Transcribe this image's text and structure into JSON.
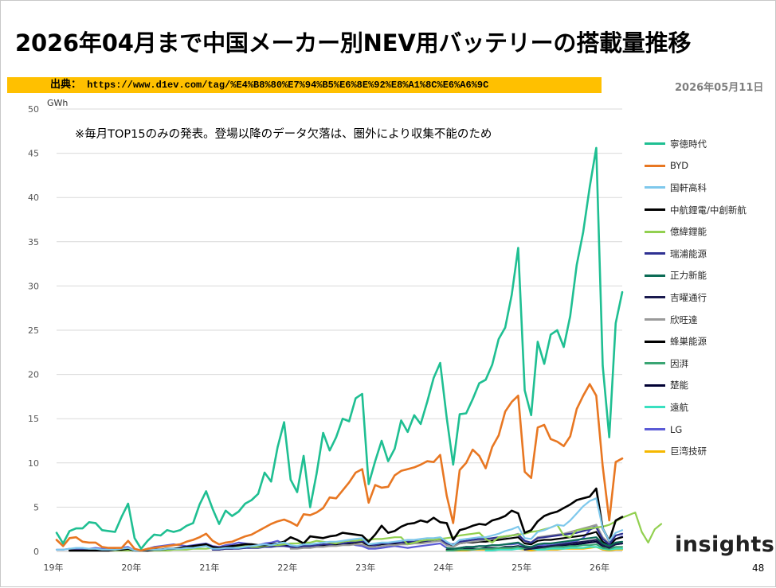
{
  "title": "2026年04月まで中国メーカー別NEV用バッテリーの搭載量推移",
  "source": {
    "label": "出典：",
    "url": "https://www.d1ev.com/tag/%E4%B8%80%E7%94%B5%E6%8E%92%E8%A1%8C%E6%A6%9C"
  },
  "date": "2026年05月11日",
  "note": "※毎月TOP15のみの発表。登場以降のデータ欠落は、圏外により収集不能のため",
  "brand": "insights",
  "page_number": "48",
  "chart_data": {
    "type": "line",
    "ylabel": "GWh",
    "ylim": [
      0,
      50
    ],
    "y_ticks": [
      0,
      5,
      10,
      15,
      20,
      25,
      30,
      35,
      40,
      45,
      50
    ],
    "x_labels": [
      "19年",
      "20年",
      "21年",
      "22年",
      "23年",
      "24年",
      "25年",
      "26年"
    ],
    "x_start": "2019-01",
    "grid": true,
    "legend_position": "right",
    "series": [
      {
        "name": "寧徳時代",
        "color": "#1fbf92",
        "width": 2.6,
        "start": 0,
        "values": [
          2.1,
          0.9,
          2.3,
          2.6,
          2.6,
          3.3,
          3.2,
          2.4,
          2.3,
          2.2,
          3.9,
          5.4,
          1.5,
          0.3,
          1.2,
          1.9,
          1.8,
          2.4,
          2.2,
          2.4,
          2.9,
          3.2,
          5.3,
          6.8,
          4.8,
          3.1,
          4.6,
          4,
          4.5,
          5.4,
          5.8,
          6.5,
          8.9,
          7.9,
          11.8,
          14.6,
          8.1,
          6.7,
          10.8,
          5,
          8.8,
          13.4,
          11.4,
          12.9,
          15,
          14.7,
          17.3,
          17.8,
          7.6,
          10.2,
          12.5,
          10.2,
          11.6,
          14.8,
          13.5,
          15.4,
          14.4,
          16.9,
          19.6,
          21.3,
          15.1,
          9.8,
          15.5,
          15.6,
          17.2,
          19,
          19.4,
          21.1,
          24,
          25.3,
          29,
          34.3,
          18.2,
          15.4,
          23.7,
          21.2,
          24.5,
          25,
          23.1,
          26.6,
          32.4,
          36.1,
          41.2,
          45.6,
          21,
          12.9,
          25.8,
          29.3
        ]
      },
      {
        "name": "BYD",
        "color": "#e87722",
        "width": 2.6,
        "start": 0,
        "values": [
          1.3,
          0.6,
          1.5,
          1.6,
          1.1,
          1,
          1,
          0.5,
          0.4,
          0.4,
          0.4,
          1.2,
          0.3,
          0.1,
          0.3,
          0.4,
          0.5,
          0.6,
          0.7,
          0.8,
          1.1,
          1.3,
          1.6,
          2,
          1.2,
          0.8,
          1,
          1.1,
          1.4,
          1.7,
          1.9,
          2.3,
          2.7,
          3.1,
          3.4,
          3.6,
          3.3,
          2.9,
          4.2,
          4.1,
          4.4,
          4.9,
          6.1,
          6,
          6.9,
          7.8,
          8.9,
          9.3,
          5.5,
          7.5,
          7.2,
          7.3,
          8.6,
          9.1,
          9.3,
          9.5,
          9.8,
          10.2,
          10.1,
          10.9,
          6.3,
          3.2,
          9.2,
          10,
          11.5,
          10.8,
          9.4,
          11.8,
          13.1,
          15.8,
          16.9,
          17.6,
          9,
          8.3,
          14,
          14.3,
          12.7,
          12.4,
          11.9,
          13,
          16.1,
          17.6,
          18.9,
          17.6,
          9.6,
          3.5,
          10.1,
          10.5
        ]
      },
      {
        "name": "国軒高科",
        "color": "#7ec8ec",
        "width": 2.2,
        "start": 0,
        "values": [
          0.2,
          0.2,
          0.3,
          0.4,
          0.4,
          0.3,
          0.3,
          0.2,
          0.2,
          0.2,
          0.3,
          0.4,
          0.1,
          0.1,
          0.2,
          0.2,
          0.2,
          0.3,
          0.3,
          0.3,
          0.4,
          0.4,
          0.5,
          0.6,
          0.3,
          0.3,
          0.4,
          0.4,
          0.4,
          0.5,
          0.6,
          0.7,
          0.8,
          0.7,
          0.9,
          1,
          0.7,
          0.6,
          0.8,
          0.8,
          0.9,
          1,
          1.1,
          1.1,
          1.2,
          1.3,
          1.4,
          1.5,
          0.8,
          0.9,
          1,
          1,
          1.1,
          1.2,
          1.3,
          1.3,
          1.4,
          1.5,
          1.5,
          1.6,
          1.1,
          0.7,
          1.3,
          1.4,
          1.5,
          1.6,
          1.6,
          1.8,
          2,
          2.3,
          2.5,
          2.8,
          1.5,
          1.4,
          2.2,
          2.4,
          2.7,
          3,
          2.9,
          3.5,
          4.3,
          5.1,
          5.7,
          6,
          2.6,
          1.2,
          2.1,
          2.4
        ]
      },
      {
        "name": "中航鋰電/中創新航",
        "color": "#000000",
        "width": 2.6,
        "start": 2,
        "values": [
          0.1,
          0.1,
          0.1,
          0.1,
          0.1,
          0.1,
          0.1,
          0.2,
          0.2,
          0.3,
          0.1,
          0.1,
          0.1,
          0.2,
          0.2,
          0.3,
          0.3,
          0.4,
          0.5,
          0.6,
          0.7,
          0.8,
          0.5,
          0.4,
          0.5,
          0.6,
          0.7,
          0.8,
          0.8,
          0.7,
          0.7,
          0.8,
          0.9,
          1.1,
          1.6,
          1.3,
          0.9,
          1.7,
          1.6,
          1.5,
          1.7,
          1.8,
          2.1,
          2,
          1.9,
          1.8,
          1.1,
          1.9,
          2.9,
          2.1,
          2.3,
          2.8,
          3.1,
          3.2,
          3.5,
          3.3,
          3.8,
          3.3,
          3.2,
          1.3,
          2.4,
          2.6,
          2.9,
          3.1,
          3,
          3.5,
          3.7,
          4,
          4.6,
          4.3,
          2.1,
          2.4,
          3.4,
          4,
          4.3,
          4.5,
          4.9,
          5.3,
          5.8,
          6,
          6.2,
          7.1,
          2.6,
          1.2,
          3.5,
          3.9
        ]
      },
      {
        "name": "億緯鋰能",
        "color": "#92d050",
        "width": 2.2,
        "start": 6,
        "values": [
          0.1,
          0.1,
          0.1,
          0.1,
          0.1,
          0.1,
          0.1,
          0.1,
          0.1,
          0.1,
          0.1,
          0.1,
          0.2,
          0.2,
          0.2,
          0.3,
          0.3,
          0.3,
          0.4,
          0.4,
          0.5,
          0.5,
          0.6,
          0.6,
          0.5,
          0.5,
          0.6,
          0.7,
          0.7,
          0.8,
          0.9,
          0.9,
          1,
          1,
          1.2,
          1.1,
          1,
          0.9,
          1.1,
          1.2,
          1.2,
          1.3,
          1.3,
          1.4,
          1.4,
          1.5,
          1.6,
          1.6,
          0.8,
          1,
          1.2,
          1.3,
          1.3,
          1.4,
          1.5,
          1.6,
          1.8,
          1.9,
          2,
          2.1,
          1.4,
          1,
          1.6,
          1.7,
          1.8,
          1.9,
          2,
          2.2,
          2.3,
          2.5,
          2.7,
          3,
          1.8,
          1.6,
          2.4,
          2.5,
          2.6,
          2.7,
          2.8,
          3,
          3.4,
          3.8,
          4.1,
          4.4,
          2.2,
          1,
          2.5,
          3.1
        ]
      },
      {
        "name": "瑞浦能源",
        "color": "#2e3192",
        "width": 2.2,
        "start": 24,
        "values": [
          0.2,
          0.2,
          0.3,
          0.3,
          0.3,
          0.4,
          0.4,
          0.4,
          0.5,
          0.5,
          0.6,
          0.6,
          0.5,
          0.5,
          0.6,
          0.6,
          0.7,
          0.8,
          0.8,
          0.9,
          0.9,
          1,
          1.1,
          1.2,
          0.8,
          0.7,
          0.9,
          0.9,
          1,
          1,
          1.1,
          1.1,
          1.2,
          1.2,
          1.3,
          1.4,
          0.9,
          0.8,
          1.1,
          1.2,
          1.3,
          1.4,
          1.4,
          1.5,
          1.6,
          1.7,
          1.8,
          1.9,
          1.2,
          1,
          1.5,
          1.6,
          1.7,
          1.8,
          1.9,
          2,
          2.1,
          2.3,
          2.5,
          2.7,
          1.4,
          0.8,
          1.8,
          2
        ]
      },
      {
        "name": "正力新能",
        "color": "#0b6b55",
        "width": 2.2,
        "start": 60,
        "values": [
          0.4,
          0.3,
          0.4,
          0.5,
          0.5,
          0.6,
          0.6,
          0.7,
          0.7,
          0.8,
          0.9,
          1,
          0.6,
          0.5,
          0.8,
          0.9,
          0.9,
          1,
          1.1,
          1.2,
          1.3,
          1.4,
          1.5,
          1.6,
          0.9,
          0.6,
          1,
          1.1
        ]
      },
      {
        "name": "吉曜通行",
        "color": "#1a1a4e",
        "width": 2.2,
        "start": 72,
        "values": [
          0.2,
          0.3,
          0.4,
          0.5,
          0.6,
          0.7,
          0.8,
          0.9,
          1,
          1.1,
          1.2,
          1.3,
          0.7,
          0.4,
          0.8,
          0.9
        ]
      },
      {
        "name": "欣旺達",
        "color": "#9a9a9a",
        "width": 2.2,
        "start": 36,
        "values": [
          0.3,
          0.3,
          0.4,
          0.4,
          0.5,
          0.5,
          0.6,
          0.6,
          0.7,
          0.7,
          0.8,
          0.8,
          0.5,
          0.5,
          0.6,
          0.7,
          0.7,
          0.8,
          0.8,
          0.9,
          0.9,
          1,
          1.1,
          1.2,
          0.7,
          0.5,
          0.9,
          1,
          1.1,
          1.2,
          1.3,
          1.4,
          1.5,
          1.6,
          1.8,
          2,
          1.1,
          1,
          1.6,
          1.7,
          1.8,
          1.9,
          2,
          2.2,
          2.4,
          2.6,
          2.8,
          3,
          1.6,
          0.9,
          1.8,
          2
        ]
      },
      {
        "name": "蜂巣能源",
        "color": "#000000",
        "width": 2.2,
        "start": 24,
        "values": [
          0.2,
          0.2,
          0.3,
          0.3,
          0.4,
          0.4,
          0.5,
          0.5,
          0.5,
          0.6,
          0.6,
          0.7,
          0.5,
          0.4,
          0.6,
          0.6,
          0.7,
          0.7,
          0.8,
          0.8,
          0.9,
          0.9,
          1,
          1.1,
          0.6,
          0.6,
          0.8,
          0.8,
          0.9,
          0.9,
          1,
          1,
          1.1,
          1.1,
          1.2,
          1.3,
          0.7,
          0.6,
          0.9,
          1,
          1,
          1.1,
          1.1,
          1.2,
          1.3,
          1.4,
          1.5,
          1.6,
          0.9,
          0.8,
          1.2,
          1.3,
          1.3,
          1.4,
          1.5,
          1.6,
          1.7,
          1.8,
          2,
          2.2,
          1.1,
          0.6,
          1.4,
          1.6
        ]
      },
      {
        "name": "因湃",
        "color": "#3aa573",
        "width": 2.2,
        "start": 60,
        "values": [
          0.1,
          0.1,
          0.2,
          0.2,
          0.2,
          0.3,
          0.3,
          0.3,
          0.4,
          0.4,
          0.4,
          0.5,
          0.3,
          0.3,
          0.4,
          0.4,
          0.5,
          0.5,
          0.5,
          0.6,
          0.6,
          0.7,
          0.7,
          0.8,
          0.4,
          0.3,
          0.5,
          0.5
        ]
      },
      {
        "name": "楚能",
        "color": "#000033",
        "width": 2.2,
        "start": 60,
        "values": [
          0.2,
          0.2,
          0.2,
          0.3,
          0.3,
          0.3,
          0.4,
          0.4,
          0.4,
          0.5,
          0.5,
          0.6,
          0.4,
          0.3,
          0.5,
          0.5,
          0.6,
          0.6,
          0.7,
          0.7,
          0.8,
          0.9,
          1,
          1.1,
          0.6,
          0.4,
          0.8,
          0.9
        ]
      },
      {
        "name": "遠航",
        "color": "#39e0c0",
        "width": 2.2,
        "start": 66,
        "values": [
          0.1,
          0.1,
          0.2,
          0.2,
          0.2,
          0.3,
          0.3,
          0.3,
          0.2,
          0.2,
          0.3,
          0.3,
          0.3,
          0.4,
          0.4,
          0.4,
          0.5,
          0.5,
          0.3,
          0.2,
          0.3,
          0.3
        ]
      },
      {
        "name": "LG",
        "color": "#5b5bd6",
        "width": 2.2,
        "start": 0,
        "values": [
          0.2,
          0.2,
          0.3,
          0.3,
          0.3,
          0.3,
          0.4,
          0.3,
          0.3,
          0.4,
          0.4,
          0.5,
          0.1,
          0.1,
          0.3,
          0.5,
          0.6,
          0.7,
          0.8,
          0.7,
          0.6,
          0.7,
          0.8,
          0.9,
          0.6,
          0.5,
          0.7,
          0.8,
          1,
          0.9,
          0.8,
          0.7,
          0.9,
          1,
          1.2,
          0.8,
          0.5,
          0.4,
          0.6,
          0.7,
          0.7,
          0.6,
          0.6,
          0.7,
          0.8,
          0.9,
          0.7,
          0.6,
          0.3,
          0.3,
          0.4,
          0.5,
          0.6,
          0.5,
          0.4,
          0.5,
          0.6,
          0.7,
          0.8,
          0.9,
          0.4,
          0.2,
          0.4,
          0.5,
          0.5,
          0.6,
          0.6,
          0.7,
          0.7,
          0.8,
          0.8,
          0.9,
          0.5,
          0.4,
          0.6,
          0.7,
          0.7,
          0.8,
          0.9,
          1,
          1.2,
          1.5,
          2.4,
          3,
          1.5,
          0.7,
          1.4,
          1.7
        ]
      },
      {
        "name": "巨湾技研",
        "color": "#f5b800",
        "width": 2.2,
        "start": 60,
        "values": [
          0.1,
          0.1,
          0.1,
          0.1,
          0.2,
          0.2,
          0.2,
          0.2,
          0.2,
          0.3,
          0.3,
          0.3,
          0.2,
          0.1,
          0.2,
          0.2,
          0.2,
          0.2,
          0.3,
          0.3,
          0.3,
          0.3,
          0.4,
          0.5,
          0.2,
          0.1,
          0.2,
          0.2
        ]
      }
    ]
  }
}
